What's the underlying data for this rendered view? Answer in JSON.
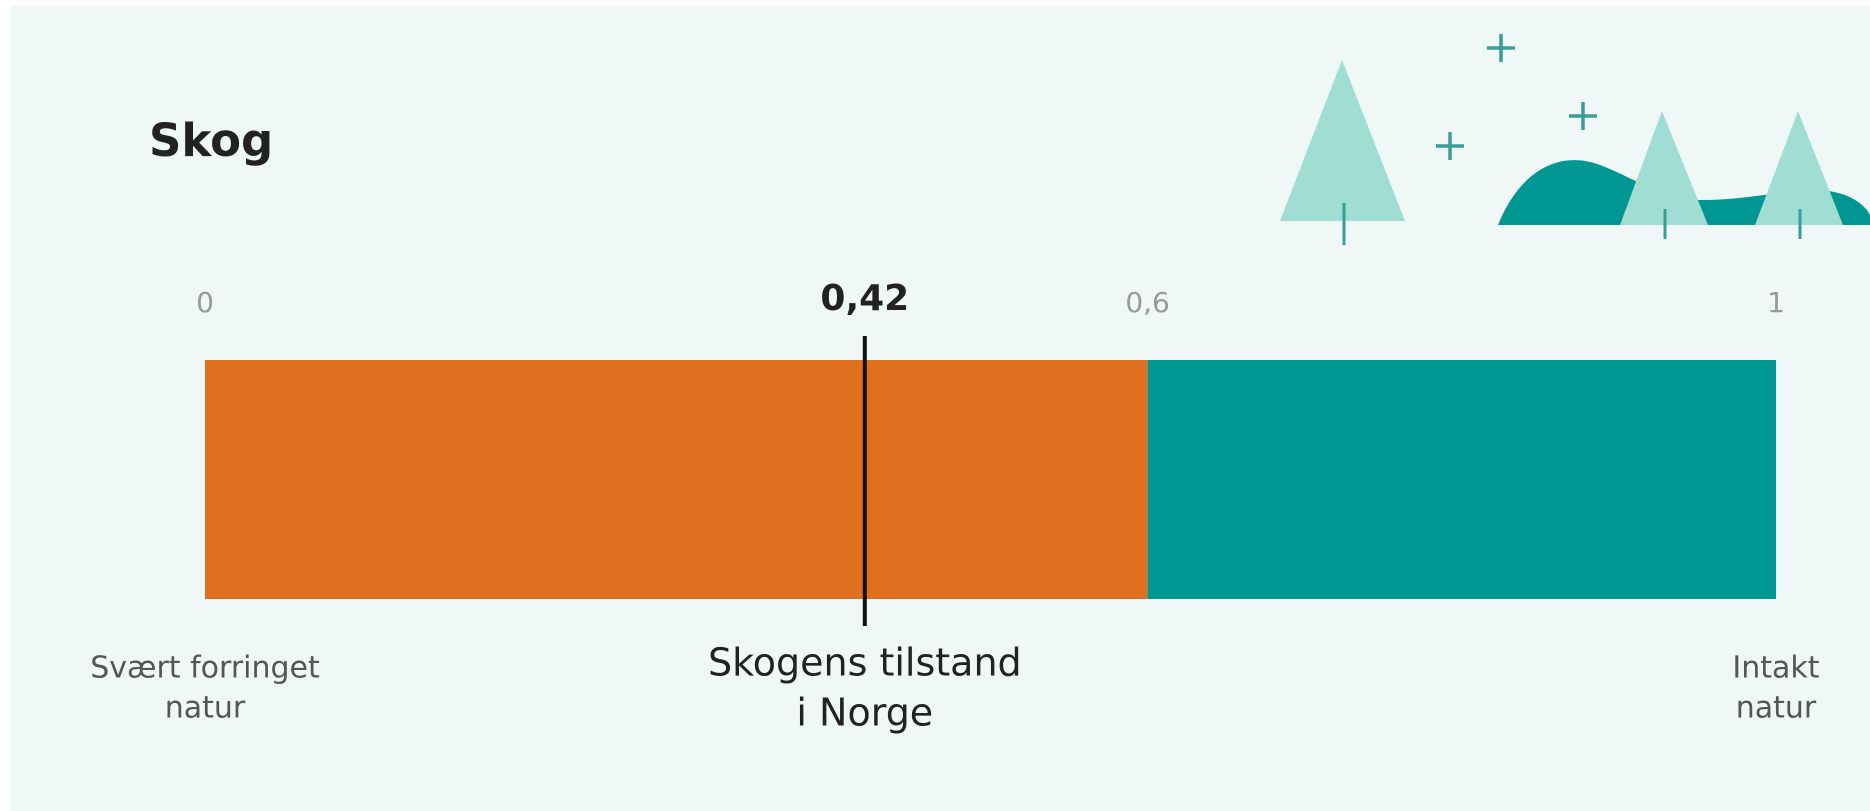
{
  "chart_data": {
    "type": "gauge",
    "title": "Skog",
    "xlim": [
      0,
      1
    ],
    "xticks": [
      0,
      {
        "value": 0.6,
        "label": "0,6"
      },
      1
    ],
    "bands": [
      {
        "from": 0,
        "to": 0.6,
        "color": "#e07020"
      },
      {
        "from": 0.6,
        "to": 1,
        "color": "#009793"
      }
    ],
    "marker": {
      "value": 0.42,
      "value_label": "0,42",
      "label_lines": [
        "Skogens tilstand",
        "i Norge"
      ]
    },
    "min_label_lines": [
      "Svært forringet",
      "natur"
    ],
    "max_label_lines": [
      "Intakt",
      "natur"
    ]
  }
}
